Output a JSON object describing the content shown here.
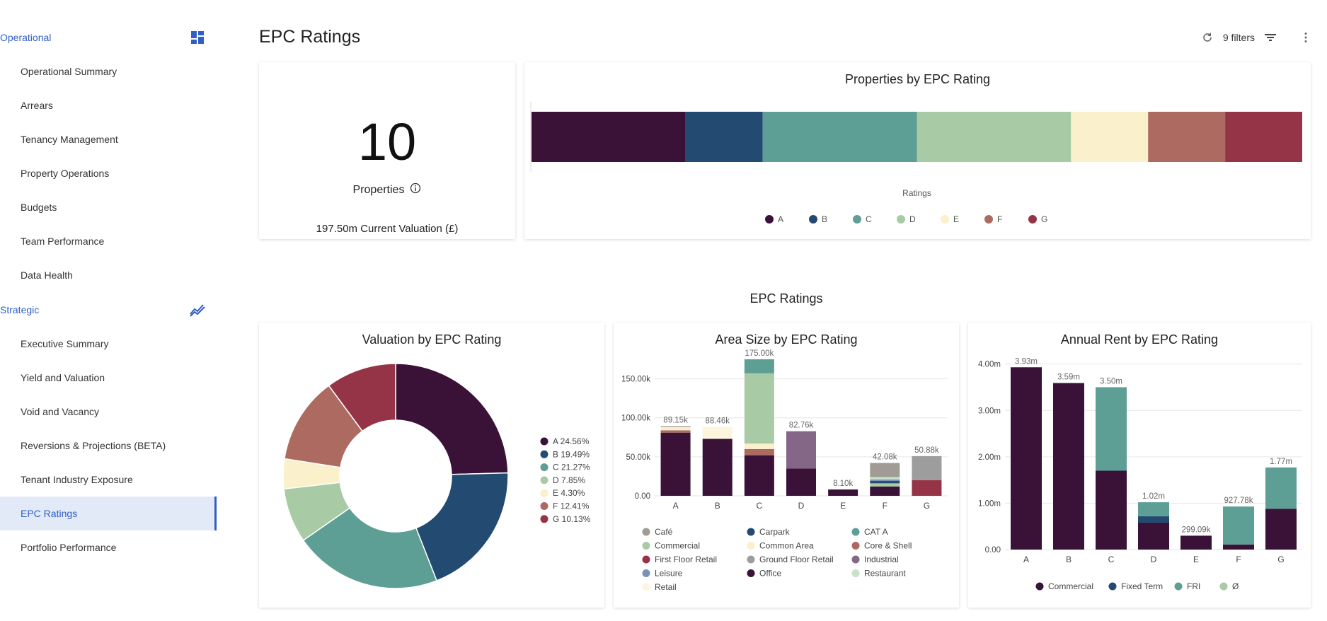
{
  "sidebar": {
    "operational": {
      "label": "Operational",
      "icon": "dashboard-icon",
      "items": [
        "Operational Summary",
        "Arrears",
        "Tenancy Management",
        "Property Operations",
        "Budgets",
        "Team Performance",
        "Data Health"
      ]
    },
    "strategic": {
      "label": "Strategic",
      "icon": "trend-icon",
      "items": [
        "Executive Summary",
        "Yield and Valuation",
        "Void and Vacancy",
        "Reversions & Projections (BETA)",
        "Tenant Industry Exposure",
        "EPC Ratings",
        "Portfolio Performance"
      ],
      "active_item": "EPC Ratings"
    }
  },
  "header": {
    "title": "EPC Ratings",
    "filters_label": "9 filters",
    "refresh_icon": "refresh-icon",
    "filter_icon": "filter-icon",
    "menu_icon": "more-vert-icon"
  },
  "kpi": {
    "value": "10",
    "label": "Properties",
    "info_icon": "info-icon",
    "sub": "197.50m Current Valuation (£)"
  },
  "section_title": "EPC Ratings",
  "colors": {
    "A": "#3a1238",
    "B": "#234b72",
    "C": "#5e9f95",
    "D": "#a8cba6",
    "E": "#faf0cc",
    "F": "#ac6a61",
    "G": "#953446",
    "Café": "#a09b95",
    "Carpark": "#234b72",
    "CAT A": "#5e9f95",
    "Commercial": "#a8cba6",
    "Common Area": "#faf0cc",
    "Core & Shell": "#ac6a61",
    "First Floor Retail": "#953446",
    "Ground Floor Retail": "#9d9d9d",
    "Industrial": "#846787",
    "Leisure": "#7b93b3",
    "Office": "#3a1238",
    "Restaurant": "#c9e1c6",
    "Retail": "#fcf5de",
    "Rent Commercial": "#3a1238",
    "Rent Fixed Term": "#234b72",
    "Rent FRI": "#5e9f95",
    "Rent Ø": "#a8cba6"
  },
  "chart_data": [
    {
      "type": "bar",
      "orientation": "horizontal-stacked",
      "title": "Properties by EPC Rating",
      "xlabel": "Ratings",
      "legend_position": "bottom",
      "categories": [
        "A",
        "B",
        "C",
        "D",
        "E",
        "F",
        "G"
      ],
      "values": [
        2,
        1,
        2,
        2,
        1,
        1,
        1
      ]
    },
    {
      "type": "pie",
      "variant": "donut",
      "title": "Valuation by EPC Rating",
      "legend_position": "right",
      "labels": [
        "A",
        "B",
        "C",
        "D",
        "E",
        "F",
        "G"
      ],
      "values": [
        24.56,
        19.49,
        21.27,
        7.85,
        4.3,
        12.41,
        10.13
      ],
      "legend_text": [
        "A 24.56%",
        "B 19.49%",
        "C 21.27%",
        "D 7.85%",
        "E 4.30%",
        "F 12.41%",
        "G 10.13%"
      ]
    },
    {
      "type": "bar",
      "variant": "stacked",
      "title": "Area Size by EPC Rating",
      "categories": [
        "A",
        "B",
        "C",
        "D",
        "E",
        "F",
        "G"
      ],
      "ylim": [
        0,
        175000
      ],
      "yticks": [
        "0.00",
        "50.00k",
        "100.00k",
        "150.00k"
      ],
      "ytick_values": [
        0,
        50000,
        100000,
        150000
      ],
      "totals_labels": [
        "89.15k",
        "88.46k",
        "175.00k",
        "82.76k",
        "8.10k",
        "42.08k",
        "50.88k"
      ],
      "legend_position": "bottom",
      "series": [
        {
          "name": "Office",
          "values": [
            81000,
            73000,
            52000,
            35000,
            8100,
            12000,
            0
          ]
        },
        {
          "name": "Core & Shell",
          "values": [
            3000,
            0,
            8000,
            0,
            0,
            0,
            0
          ]
        },
        {
          "name": "Common Area",
          "values": [
            4000,
            0,
            7000,
            0,
            0,
            0,
            0
          ]
        },
        {
          "name": "Retail",
          "values": [
            0,
            15460,
            0,
            0,
            0,
            0,
            0
          ]
        },
        {
          "name": "Commercial",
          "values": [
            0,
            0,
            90000,
            0,
            0,
            4000,
            0
          ]
        },
        {
          "name": "CAT A",
          "values": [
            0,
            0,
            18000,
            0,
            0,
            0,
            0
          ]
        },
        {
          "name": "Industrial",
          "values": [
            0,
            0,
            0,
            47760,
            0,
            0,
            0
          ]
        },
        {
          "name": "Carpark",
          "values": [
            0,
            0,
            0,
            0,
            0,
            3000,
            0
          ]
        },
        {
          "name": "Leisure",
          "values": [
            0,
            0,
            0,
            0,
            0,
            2000,
            0
          ]
        },
        {
          "name": "Restaurant",
          "values": [
            0,
            0,
            0,
            0,
            0,
            3000,
            0
          ]
        },
        {
          "name": "Café",
          "values": [
            1150,
            0,
            0,
            0,
            0,
            18080,
            0
          ]
        },
        {
          "name": "First Floor Retail",
          "values": [
            0,
            0,
            0,
            0,
            0,
            0,
            20000
          ]
        },
        {
          "name": "Ground Floor Retail",
          "values": [
            0,
            0,
            0,
            0,
            0,
            0,
            30880
          ]
        }
      ],
      "legend": [
        "Café",
        "Carpark",
        "CAT A",
        "Commercial",
        "Common Area",
        "Core & Shell",
        "First Floor Retail",
        "Ground Floor Retail",
        "Industrial",
        "Leisure",
        "Office",
        "Restaurant",
        "Retail"
      ]
    },
    {
      "type": "bar",
      "variant": "stacked",
      "title": "Annual Rent by EPC Rating",
      "categories": [
        "A",
        "B",
        "C",
        "D",
        "E",
        "F",
        "G"
      ],
      "ylim": [
        0,
        4300000
      ],
      "yticks": [
        "0.00",
        "1.00m",
        "2.00m",
        "3.00m",
        "4.00m"
      ],
      "ytick_values": [
        0,
        1000000,
        2000000,
        3000000,
        4000000
      ],
      "totals_labels": [
        "3.93m",
        "3.59m",
        "3.50m",
        "1.02m",
        "299.09k",
        "927.78k",
        "1.77m"
      ],
      "legend_position": "bottom",
      "series": [
        {
          "name": "Commercial",
          "values": [
            3930000,
            3590000,
            1700000,
            580000,
            299090,
            110000,
            880000
          ]
        },
        {
          "name": "Fixed Term",
          "values": [
            0,
            0,
            0,
            140000,
            0,
            0,
            0
          ]
        },
        {
          "name": "FRI",
          "values": [
            0,
            0,
            1800000,
            300000,
            0,
            817780,
            890000
          ]
        },
        {
          "name": "Ø",
          "values": [
            0,
            0,
            0,
            0,
            0,
            0,
            0
          ]
        }
      ],
      "legend": [
        "Commercial",
        "Fixed Term",
        "FRI",
        "Ø"
      ]
    }
  ]
}
